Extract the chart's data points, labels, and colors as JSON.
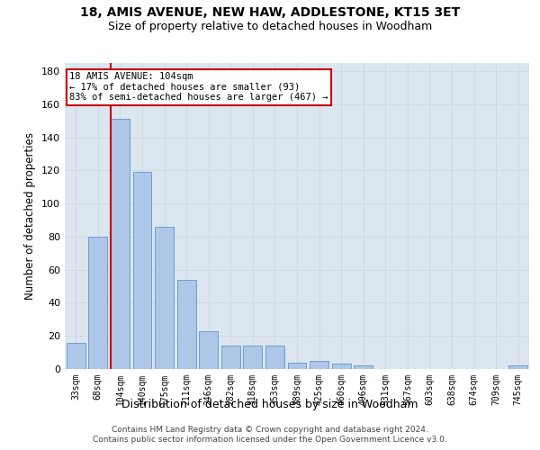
{
  "title1": "18, AMIS AVENUE, NEW HAW, ADDLESTONE, KT15 3ET",
  "title2": "Size of property relative to detached houses in Woodham",
  "xlabel": "Distribution of detached houses by size in Woodham",
  "ylabel": "Number of detached properties",
  "categories": [
    "33sqm",
    "68sqm",
    "104sqm",
    "140sqm",
    "175sqm",
    "211sqm",
    "246sqm",
    "282sqm",
    "318sqm",
    "353sqm",
    "389sqm",
    "425sqm",
    "460sqm",
    "496sqm",
    "531sqm",
    "567sqm",
    "603sqm",
    "638sqm",
    "674sqm",
    "709sqm",
    "745sqm"
  ],
  "values": [
    16,
    80,
    151,
    119,
    86,
    54,
    23,
    14,
    14,
    14,
    4,
    5,
    3,
    2,
    0,
    0,
    0,
    0,
    0,
    0,
    2
  ],
  "bar_color": "#aec6e8",
  "bar_edge_color": "#6a9fd0",
  "highlight_bar_index": 2,
  "highlight_line_color": "#cc0000",
  "annotation_line1": "18 AMIS AVENUE: 104sqm",
  "annotation_line2": "← 17% of detached houses are smaller (93)",
  "annotation_line3": "83% of semi-detached houses are larger (467) →",
  "annotation_box_color": "#cc0000",
  "ylim": [
    0,
    185
  ],
  "yticks": [
    0,
    20,
    40,
    60,
    80,
    100,
    120,
    140,
    160,
    180
  ],
  "grid_color": "#d0d8e0",
  "bg_color": "#dce6f0",
  "footer1": "Contains HM Land Registry data © Crown copyright and database right 2024.",
  "footer2": "Contains public sector information licensed under the Open Government Licence v3.0."
}
